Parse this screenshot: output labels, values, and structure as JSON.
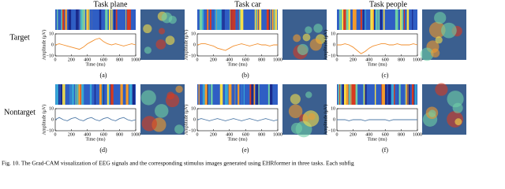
{
  "column_titles": [
    "Task plane",
    "Task car",
    "Task people"
  ],
  "row_labels": [
    "Target",
    "Nontarget"
  ],
  "caption": "Fig. 10.   The Grad-CAM visualization of EEG signals and the corresponding stimulus images generated using EHRformer in three tasks. Each subfig",
  "chart_data": [
    {
      "type": "line",
      "label": "(a)",
      "x_label": "Time (ms)",
      "y_label": "Amplitude (μV)",
      "x": [
        0,
        50,
        100,
        150,
        200,
        250,
        300,
        350,
        400,
        450,
        500,
        550,
        600,
        650,
        700,
        750,
        800,
        850,
        900,
        950,
        1000
      ],
      "series": [
        {
          "color": "#f28e2b",
          "values": [
            0,
            1,
            0,
            -1,
            -2,
            -3,
            -4,
            -2,
            1,
            3,
            5,
            6,
            3,
            1,
            0,
            1,
            0,
            -1,
            0,
            1,
            0
          ]
        }
      ],
      "ylim": [
        -10,
        10
      ],
      "yticks": [
        {
          "value": -10,
          "label": "−10"
        },
        0,
        10
      ],
      "xlim": [
        0,
        1000
      ],
      "xticks": [
        0,
        200,
        400,
        600,
        800,
        1000
      ]
    },
    {
      "type": "line",
      "label": "(b)",
      "x_label": "Time (ms)",
      "y_label": "Amplitude (μV)",
      "x": [
        0,
        50,
        100,
        150,
        200,
        250,
        300,
        350,
        400,
        450,
        500,
        550,
        600,
        650,
        700,
        750,
        800,
        850,
        900,
        950,
        1000
      ],
      "series": [
        {
          "color": "#f28e2b",
          "values": [
            0,
            1,
            1,
            0,
            -1,
            -3,
            -4,
            -5,
            -3,
            -1,
            0,
            1,
            0,
            -1,
            0,
            1,
            0,
            0,
            -1,
            0,
            0
          ]
        }
      ],
      "ylim": [
        -10,
        10
      ],
      "yticks": [
        {
          "value": -10,
          "label": "−10"
        },
        0,
        10
      ],
      "xlim": [
        0,
        1000
      ],
      "xticks": [
        0,
        200,
        400,
        600,
        800,
        1000
      ]
    },
    {
      "type": "line",
      "label": "(c)",
      "x_label": "Time (ms)",
      "y_label": "Amplitude (μV)",
      "x": [
        0,
        50,
        100,
        150,
        200,
        250,
        300,
        350,
        400,
        450,
        500,
        550,
        600,
        650,
        700,
        750,
        800,
        850,
        900,
        950,
        1000
      ],
      "series": [
        {
          "color": "#f28e2b",
          "values": [
            0,
            0,
            1,
            0,
            -2,
            -5,
            -8,
            -6,
            -3,
            -1,
            0,
            1,
            1,
            0,
            0,
            1,
            0,
            0,
            0,
            1,
            0
          ]
        }
      ],
      "ylim": [
        -10,
        10
      ],
      "yticks": [
        {
          "value": -10,
          "label": "−10"
        },
        0,
        10
      ],
      "xlim": [
        0,
        1000
      ],
      "xticks": [
        0,
        200,
        400,
        600,
        800,
        1000
      ]
    },
    {
      "type": "line",
      "label": "(d)",
      "x_label": "Time (ms)",
      "y_label": "Amplitude (μV)",
      "x": [
        0,
        50,
        100,
        150,
        200,
        250,
        300,
        350,
        400,
        450,
        500,
        550,
        600,
        650,
        700,
        750,
        800,
        850,
        900,
        950,
        1000
      ],
      "series": [
        {
          "color": "#4e79a7",
          "values": [
            0,
            2,
            0,
            -1,
            1,
            2,
            0,
            -1,
            1,
            2,
            0,
            -1,
            1,
            2,
            0,
            -1,
            1,
            2,
            0,
            -1,
            0
          ]
        }
      ],
      "ylim": [
        -10,
        10
      ],
      "yticks": [
        {
          "value": -10,
          "label": "−10"
        },
        0,
        10
      ],
      "xlim": [
        0,
        1000
      ],
      "xticks": [
        0,
        200,
        400,
        600,
        800,
        1000
      ]
    },
    {
      "type": "line",
      "label": "(e)",
      "x_label": "Time (ms)",
      "y_label": "Amplitude (μV)",
      "x": [
        0,
        50,
        100,
        150,
        200,
        250,
        300,
        350,
        400,
        450,
        500,
        550,
        600,
        650,
        700,
        750,
        800,
        850,
        900,
        950,
        1000
      ],
      "series": [
        {
          "color": "#4e79a7",
          "values": [
            0,
            1,
            0,
            -1,
            0,
            1,
            0,
            -1,
            0,
            1,
            0,
            -1,
            0,
            1,
            0,
            -1,
            0,
            1,
            0,
            -1,
            0
          ]
        }
      ],
      "ylim": [
        -10,
        10
      ],
      "yticks": [
        {
          "value": -10,
          "label": "−10"
        },
        0,
        10
      ],
      "xlim": [
        0,
        1000
      ],
      "xticks": [
        0,
        200,
        400,
        600,
        800,
        1000
      ]
    },
    {
      "type": "line",
      "label": "(f)",
      "x_label": "Time (ms)",
      "y_label": "Amplitude (μV)",
      "x": [
        0,
        50,
        100,
        150,
        200,
        250,
        300,
        350,
        400,
        450,
        500,
        550,
        600,
        650,
        700,
        750,
        800,
        850,
        900,
        950,
        1000
      ],
      "series": [
        {
          "color": "#4e79a7",
          "values": [
            0,
            0,
            0,
            -1,
            0,
            0,
            0,
            -1,
            0,
            0,
            0,
            0,
            0,
            -1,
            0,
            0,
            0,
            0,
            0,
            0,
            0
          ]
        }
      ],
      "ylim": [
        -10,
        10
      ],
      "yticks": [
        {
          "value": -10,
          "label": "−10"
        },
        0,
        10
      ],
      "xlim": [
        0,
        1000
      ],
      "xticks": [
        0,
        200,
        400,
        600,
        800,
        1000
      ]
    }
  ]
}
